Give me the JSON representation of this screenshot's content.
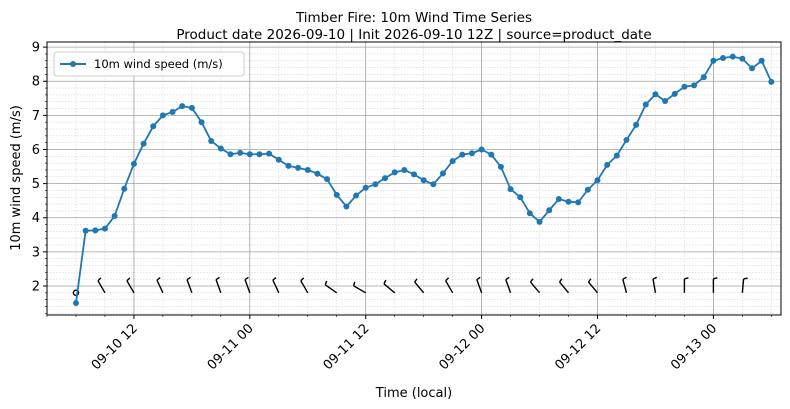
{
  "chart_data": {
    "type": "line",
    "title": "Timber Fire: 10m Wind Time Series",
    "subtitle": "Product date 2026-09-10 | Init 2026-09-10 12Z | source=product_date",
    "xlabel": "Time (local)",
    "ylabel": "10m wind speed (m/s)",
    "xlim": [
      "2026-09-10 03:00",
      "2026-09-13 07:00"
    ],
    "ylim": [
      1.15,
      9.15
    ],
    "yticks": [
      2,
      3,
      4,
      5,
      6,
      7,
      8,
      9
    ],
    "xticks": [
      {
        "t": "2026-09-10 12:00",
        "label": "09-10 12"
      },
      {
        "t": "2026-09-11 00:00",
        "label": "09-11 00"
      },
      {
        "t": "2026-09-11 12:00",
        "label": "09-11 12"
      },
      {
        "t": "2026-09-12 00:00",
        "label": "09-12 00"
      },
      {
        "t": "2026-09-12 12:00",
        "label": "09-12 12"
      },
      {
        "t": "2026-09-13 00:00",
        "label": "09-13 00"
      }
    ],
    "grid": true,
    "legend": "top-left",
    "series": [
      {
        "name": "10m wind speed (m/s)",
        "color": "#1f77b4",
        "start": "2026-09-10 06:00",
        "step_hours": 1,
        "values": [
          1.5,
          3.62,
          3.63,
          3.68,
          4.05,
          4.85,
          5.58,
          6.17,
          6.68,
          7.0,
          7.1,
          7.27,
          7.22,
          6.8,
          6.25,
          6.03,
          5.86,
          5.9,
          5.86,
          5.86,
          5.88,
          5.7,
          5.52,
          5.46,
          5.4,
          5.29,
          5.13,
          4.67,
          4.33,
          4.65,
          4.88,
          4.98,
          5.16,
          5.33,
          5.4,
          5.27,
          5.1,
          4.98,
          5.3,
          5.66,
          5.85,
          5.89,
          6.0,
          5.85,
          5.49,
          4.84,
          4.6,
          4.13,
          3.88,
          4.22,
          4.55,
          4.47,
          4.45,
          4.82,
          5.1,
          5.55,
          5.82,
          6.28,
          6.72,
          7.32,
          7.62,
          7.42,
          7.63,
          7.84,
          7.88,
          8.12,
          8.6,
          8.68,
          8.72,
          8.66,
          8.38,
          8.6,
          7.98
        ]
      }
    ],
    "wind_barbs": {
      "y_value": 1.8,
      "start": "2026-09-10 06:00",
      "step_hours": 3,
      "directions_deg": [
        0,
        330,
        330,
        335,
        340,
        340,
        340,
        335,
        330,
        305,
        300,
        310,
        320,
        330,
        340,
        340,
        320,
        320,
        320,
        345,
        350,
        0,
        0,
        5
      ]
    }
  }
}
